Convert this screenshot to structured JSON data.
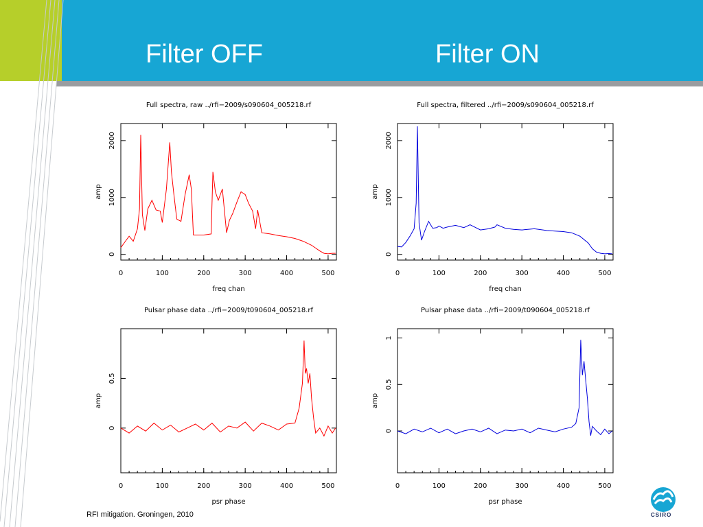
{
  "slide": {
    "title_left": "Filter OFF",
    "title_right": "Filter ON",
    "footer": "RFI mitigation.  Groningen, 2010",
    "logo_text": "CSIRO",
    "colors": {
      "header_blue": "#17a6d4",
      "accent_green": "#b6cf2a",
      "header_grey": "#9a9c9f"
    }
  },
  "chart_data": [
    {
      "type": "line",
      "title": "Full spectra, raw ../rfi−2009/s090604_005218.rf",
      "xlabel": "freq chan",
      "ylabel": "amp",
      "xlim": [
        0,
        520
      ],
      "ylim": [
        -100,
        2300
      ],
      "xticks": [
        0,
        100,
        200,
        300,
        400,
        500
      ],
      "yticks": [
        0,
        1000,
        2000
      ],
      "color": "#ff0000",
      "series": [
        {
          "x": [
            0,
            10,
            20,
            30,
            40,
            45,
            48,
            52,
            58,
            65,
            75,
            85,
            95,
            100,
            110,
            118,
            122,
            128,
            135,
            145,
            155,
            165,
            170,
            175,
            200,
            218,
            222,
            228,
            235,
            245,
            255,
            262,
            270,
            280,
            290,
            300,
            308,
            318,
            325,
            330,
            340,
            360,
            380,
            400,
            420,
            440,
            460,
            480,
            490,
            500,
            510,
            518
          ],
          "values": [
            120,
            220,
            320,
            230,
            450,
            800,
            2100,
            700,
            420,
            800,
            950,
            780,
            760,
            560,
            1150,
            1970,
            1450,
            1050,
            620,
            580,
            1050,
            1400,
            1150,
            340,
            340,
            360,
            1450,
            1100,
            950,
            1150,
            380,
            600,
            720,
            920,
            1100,
            1050,
            900,
            760,
            450,
            780,
            380,
            360,
            330,
            310,
            280,
            230,
            160,
            60,
            20,
            10,
            20,
            20
          ]
        }
      ]
    },
    {
      "type": "line",
      "title": "Full spectra, filtered ../rfi−2009/s090604_005218.rf",
      "xlabel": "freq chan",
      "ylabel": "amp",
      "xlim": [
        0,
        520
      ],
      "ylim": [
        -100,
        2300
      ],
      "xticks": [
        0,
        100,
        200,
        300,
        400,
        500
      ],
      "yticks": [
        0,
        1000,
        2000
      ],
      "color": "#0000dd",
      "series": [
        {
          "x": [
            0,
            10,
            20,
            30,
            40,
            45,
            48,
            52,
            58,
            65,
            75,
            85,
            95,
            100,
            110,
            120,
            140,
            160,
            175,
            200,
            220,
            235,
            240,
            260,
            280,
            300,
            330,
            360,
            380,
            400,
            420,
            440,
            460,
            470,
            480,
            490,
            500,
            510,
            518
          ],
          "values": [
            140,
            130,
            210,
            320,
            450,
            900,
            2250,
            550,
            250,
            400,
            580,
            460,
            470,
            500,
            460,
            480,
            510,
            470,
            520,
            430,
            450,
            480,
            520,
            460,
            440,
            430,
            450,
            420,
            410,
            400,
            380,
            320,
            200,
            100,
            40,
            20,
            10,
            15,
            10
          ]
        }
      ]
    },
    {
      "type": "line",
      "title": "Pulsar phase data ../rfi−2009/t090604_005218.rf",
      "xlabel": "psr phase",
      "ylabel": "amp",
      "xlim": [
        0,
        520
      ],
      "ylim": [
        -0.45,
        1.0
      ],
      "xticks": [
        0,
        100,
        200,
        300,
        400,
        500
      ],
      "yticks": [
        0,
        0.5
      ],
      "color": "#ff0000",
      "series": [
        {
          "x": [
            0,
            20,
            40,
            60,
            80,
            100,
            120,
            140,
            160,
            180,
            200,
            220,
            240,
            260,
            280,
            300,
            320,
            340,
            360,
            380,
            400,
            420,
            430,
            438,
            442,
            445,
            448,
            452,
            456,
            460,
            465,
            470,
            480,
            490,
            500,
            510,
            518
          ],
          "values": [
            0.0,
            -0.05,
            0.02,
            -0.03,
            0.05,
            -0.02,
            0.03,
            -0.04,
            0.0,
            0.04,
            -0.02,
            0.05,
            -0.04,
            0.02,
            0.0,
            0.06,
            -0.03,
            0.05,
            0.02,
            -0.02,
            0.04,
            0.05,
            0.2,
            0.45,
            0.88,
            0.55,
            0.6,
            0.45,
            0.55,
            0.3,
            0.1,
            -0.05,
            0.0,
            -0.08,
            0.02,
            -0.05,
            0.0
          ]
        }
      ]
    },
    {
      "type": "line",
      "title": "Pulsar phase data ../rfi−2009/t090604_005218.rf",
      "xlabel": "psr phase",
      "ylabel": "amp",
      "xlim": [
        0,
        520
      ],
      "ylim": [
        -0.45,
        1.1
      ],
      "xticks": [
        0,
        100,
        200,
        300,
        400,
        500
      ],
      "yticks": [
        0,
        0.5,
        1
      ],
      "color": "#0000dd",
      "series": [
        {
          "x": [
            0,
            20,
            40,
            60,
            80,
            100,
            120,
            140,
            160,
            180,
            200,
            220,
            240,
            260,
            280,
            300,
            320,
            340,
            360,
            380,
            400,
            420,
            430,
            438,
            442,
            446,
            450,
            454,
            458,
            462,
            466,
            470,
            480,
            490,
            500,
            510,
            518
          ],
          "values": [
            0.0,
            -0.03,
            0.02,
            -0.01,
            0.03,
            -0.02,
            0.02,
            -0.03,
            0.0,
            0.02,
            -0.01,
            0.03,
            -0.03,
            0.01,
            0.0,
            0.02,
            -0.02,
            0.03,
            0.01,
            -0.01,
            0.02,
            0.04,
            0.08,
            0.25,
            0.98,
            0.6,
            0.75,
            0.55,
            0.35,
            0.1,
            -0.05,
            0.05,
            0.0,
            -0.04,
            0.02,
            -0.03,
            0.0
          ]
        }
      ]
    }
  ]
}
